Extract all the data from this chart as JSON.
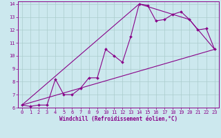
{
  "xlabel": "Windchill (Refroidissement éolien,°C)",
  "bg_color": "#cce8ee",
  "line_color": "#880088",
  "grid_color": "#aacccc",
  "xlim": [
    -0.5,
    23.5
  ],
  "ylim": [
    6,
    14.2
  ],
  "xticks": [
    0,
    1,
    2,
    3,
    4,
    5,
    6,
    7,
    8,
    9,
    10,
    11,
    12,
    13,
    14,
    15,
    16,
    17,
    18,
    19,
    20,
    21,
    22,
    23
  ],
  "yticks": [
    6,
    7,
    8,
    9,
    10,
    11,
    12,
    13,
    14
  ],
  "line1_x": [
    0,
    1,
    2,
    3,
    4,
    5,
    6,
    7,
    8,
    9,
    10,
    11,
    12,
    13,
    14,
    15,
    16,
    17,
    18,
    19,
    20,
    21,
    22,
    23
  ],
  "line1_y": [
    6.2,
    6.1,
    6.2,
    6.2,
    8.2,
    7.0,
    7.0,
    7.5,
    8.3,
    8.3,
    10.5,
    10.0,
    9.5,
    11.5,
    14.0,
    13.9,
    12.7,
    12.8,
    13.2,
    13.4,
    12.8,
    12.0,
    12.1,
    10.5
  ],
  "line2_x": [
    0,
    23
  ],
  "line2_y": [
    6.2,
    10.5
  ],
  "line3_x": [
    0,
    14,
    20,
    23
  ],
  "line3_y": [
    6.2,
    14.0,
    12.8,
    10.5
  ],
  "tick_fontsize": 5.0,
  "xlabel_fontsize": 5.5
}
